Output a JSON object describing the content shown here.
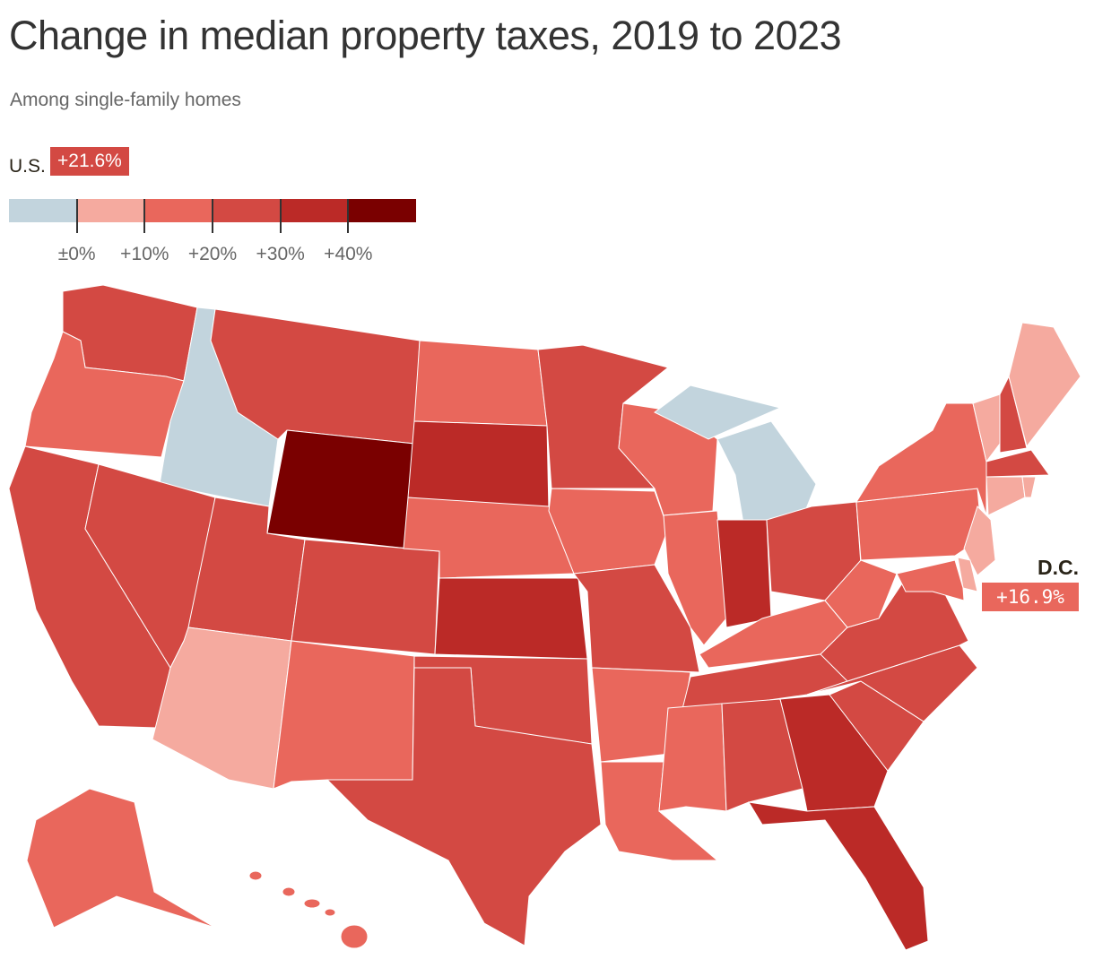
{
  "title": "Change in median property taxes, 2019 to 2023",
  "subtitle": "Among single-family homes",
  "us": {
    "label": "U.S.",
    "value": "+21.6%",
    "bin": 3
  },
  "dc": {
    "label": "D.C.",
    "value": "+16.9%",
    "bin": 2
  },
  "legend": {
    "colors": [
      "#c2d4dd",
      "#f5aa9f",
      "#e9675c",
      "#d34943",
      "#bb2a27",
      "#7a0000"
    ],
    "tick_labels": [
      "±0%",
      "+10%",
      "+20%",
      "+30%",
      "+40%"
    ]
  },
  "states": [
    {
      "code": "WA",
      "bin": 3
    },
    {
      "code": "OR",
      "bin": 2
    },
    {
      "code": "CA",
      "bin": 3
    },
    {
      "code": "ID",
      "bin": 0
    },
    {
      "code": "NV",
      "bin": 3
    },
    {
      "code": "MT",
      "bin": 3
    },
    {
      "code": "WY",
      "bin": 5
    },
    {
      "code": "UT",
      "bin": 3
    },
    {
      "code": "CO",
      "bin": 3
    },
    {
      "code": "AZ",
      "bin": 1
    },
    {
      "code": "NM",
      "bin": 2
    },
    {
      "code": "ND",
      "bin": 2
    },
    {
      "code": "SD",
      "bin": 4
    },
    {
      "code": "NE",
      "bin": 2
    },
    {
      "code": "KS",
      "bin": 4
    },
    {
      "code": "OK",
      "bin": 3
    },
    {
      "code": "TX",
      "bin": 3
    },
    {
      "code": "MN",
      "bin": 3
    },
    {
      "code": "IA",
      "bin": 2
    },
    {
      "code": "MO",
      "bin": 3
    },
    {
      "code": "AR",
      "bin": 2
    },
    {
      "code": "LA",
      "bin": 2
    },
    {
      "code": "WI",
      "bin": 2
    },
    {
      "code": "IL",
      "bin": 2
    },
    {
      "code": "MI",
      "bin": 0
    },
    {
      "code": "IN",
      "bin": 4
    },
    {
      "code": "OH",
      "bin": 3
    },
    {
      "code": "KY",
      "bin": 2
    },
    {
      "code": "TN",
      "bin": 3
    },
    {
      "code": "MS",
      "bin": 2
    },
    {
      "code": "AL",
      "bin": 3
    },
    {
      "code": "GA",
      "bin": 4
    },
    {
      "code": "FL",
      "bin": 4
    },
    {
      "code": "SC",
      "bin": 3
    },
    {
      "code": "NC",
      "bin": 3
    },
    {
      "code": "VA",
      "bin": 3
    },
    {
      "code": "WV",
      "bin": 2
    },
    {
      "code": "PA",
      "bin": 2
    },
    {
      "code": "NY",
      "bin": 2
    },
    {
      "code": "VT",
      "bin": 1
    },
    {
      "code": "NH",
      "bin": 3
    },
    {
      "code": "ME",
      "bin": 1
    },
    {
      "code": "MA",
      "bin": 3
    },
    {
      "code": "CT",
      "bin": 1
    },
    {
      "code": "RI",
      "bin": 1
    },
    {
      "code": "NJ",
      "bin": 1
    },
    {
      "code": "DE",
      "bin": 1
    },
    {
      "code": "MD",
      "bin": 2
    },
    {
      "code": "AK",
      "bin": 2
    },
    {
      "code": "HI",
      "bin": 2
    }
  ]
}
